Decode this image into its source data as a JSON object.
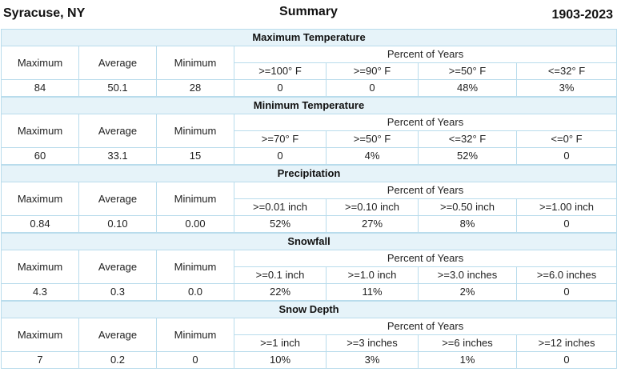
{
  "header": {
    "location": "Syracuse, NY",
    "title": "Summary",
    "years": "1903-2023"
  },
  "stat_labels": [
    "Maximum",
    "Average",
    "Minimum"
  ],
  "percent_label": "Percent of Years",
  "sections": [
    {
      "title": "Maximum Temperature",
      "thresholds": [
        ">=100° F",
        ">=90° F",
        ">=50° F",
        "<=32° F"
      ],
      "values": [
        "84",
        "50.1",
        "28",
        "0",
        "0",
        "48%",
        "3%"
      ]
    },
    {
      "title": "Minimum Temperature",
      "thresholds": [
        ">=70° F",
        ">=50° F",
        "<=32° F",
        "<=0° F"
      ],
      "values": [
        "60",
        "33.1",
        "15",
        "0",
        "4%",
        "52%",
        "0"
      ]
    },
    {
      "title": "Precipitation",
      "thresholds": [
        ">=0.01 inch",
        ">=0.10 inch",
        ">=0.50 inch",
        ">=1.00 inch"
      ],
      "values": [
        "0.84",
        "0.10",
        "0.00",
        "52%",
        "27%",
        "8%",
        "0"
      ]
    },
    {
      "title": "Snowfall",
      "thresholds": [
        ">=0.1 inch",
        ">=1.0 inch",
        ">=3.0 inches",
        ">=6.0 inches"
      ],
      "values": [
        "4.3",
        "0.3",
        "0.0",
        "22%",
        "11%",
        "2%",
        "0"
      ]
    },
    {
      "title": "Snow Depth",
      "thresholds": [
        ">=1 inch",
        ">=3 inches",
        ">=6 inches",
        ">=12 inches"
      ],
      "values": [
        "7",
        "0.2",
        "0",
        "10%",
        "3%",
        "1%",
        "0"
      ]
    }
  ]
}
